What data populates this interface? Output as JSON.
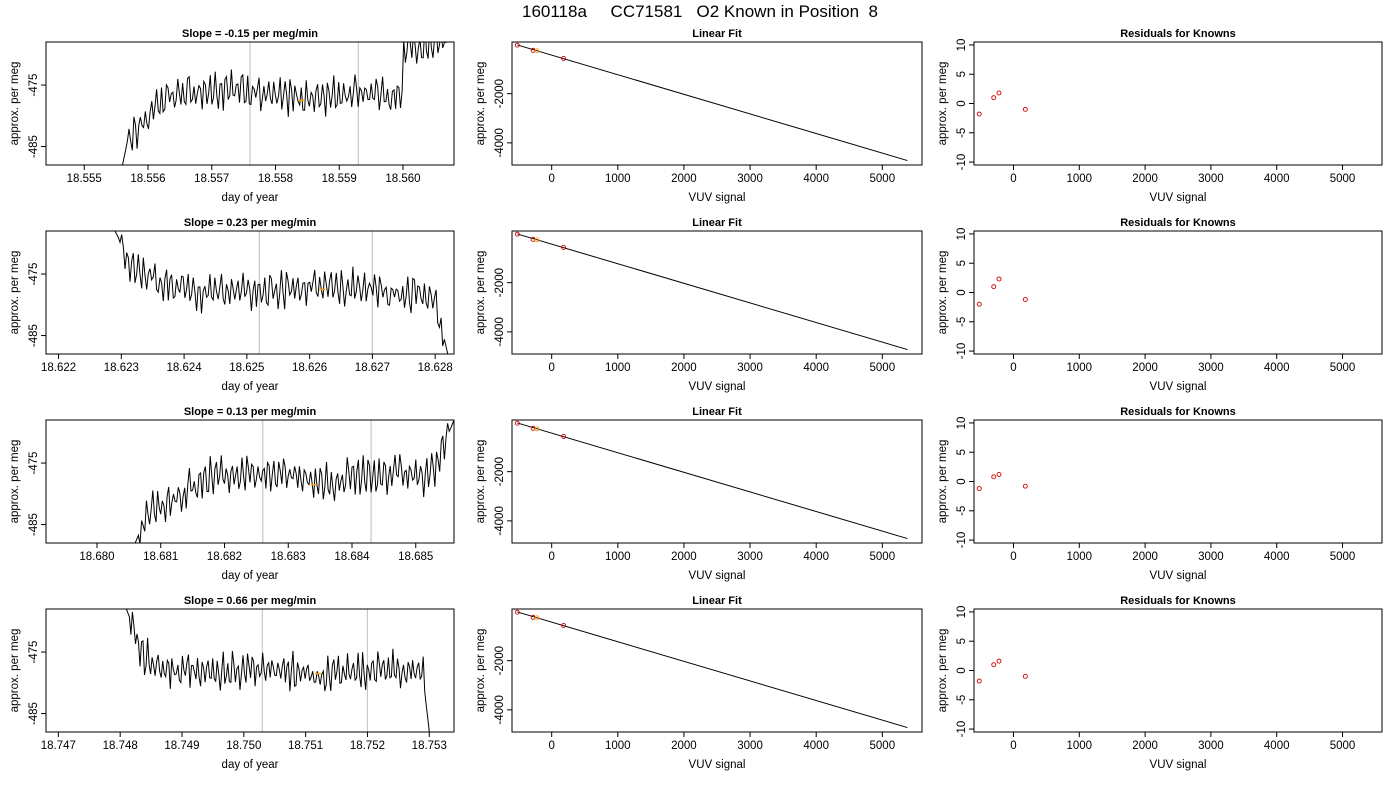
{
  "title": "160118a     CC71581   O2 Known in Position  8",
  "colors": {
    "line": "#000000",
    "grid": "#c8c8c8",
    "orange": "#ffa500",
    "red": "#d00000"
  },
  "chart_data": [
    {
      "type": "line",
      "title": "Slope =  -0.15  per meg/min",
      "xlabel": "day of year",
      "ylabel": "approx. per meg",
      "xlim": [
        18.5544,
        18.5608
      ],
      "ylim": [
        -488,
        -468
      ],
      "xticks": [
        "18.555",
        "18.556",
        "18.557",
        "18.558",
        "18.559",
        "18.560"
      ],
      "yticks": [
        "-485",
        "-475"
      ],
      "vlines": [
        18.5576,
        18.5593
      ],
      "series": [
        {
          "x": [
            18.5556,
            18.5557,
            18.55585,
            18.5563,
            18.5568,
            18.5575,
            18.5581,
            18.5588,
            18.5594,
            18.56,
            18.55605,
            18.5607
          ],
          "y": [
            -488,
            -483,
            -482,
            -477,
            -476,
            -476,
            -477,
            -477,
            -476,
            -477,
            -475,
            -468
          ]
        }
      ],
      "orange_marker": {
        "x": 18.5584,
        "y": -477.5
      }
    },
    {
      "type": "scatter",
      "title": "Linear Fit",
      "xlabel": "VUV signal",
      "ylabel": "approx. per meg",
      "xlim": [
        -600,
        5600
      ],
      "ylim": [
        -4900,
        100
      ],
      "xticks": [
        "0",
        "1000",
        "2000",
        "3000",
        "4000",
        "5000"
      ],
      "yticks": [
        "-2000",
        "-4000"
      ],
      "fit_line": {
        "x": [
          -520,
          5380
        ],
        "y": [
          -20,
          -4720
        ]
      },
      "points": [
        {
          "x": [
            -520,
            -280,
            -220,
            180
          ],
          "y": [
            -30,
            -240,
            -260,
            -570
          ]
        }
      ]
    },
    {
      "type": "scatter",
      "title": "Residuals for Knowns",
      "xlabel": "VUV signal",
      "ylabel": "approx. per meg",
      "xlim": [
        -600,
        5600
      ],
      "ylim": [
        -10.5,
        10.5
      ],
      "xticks": [
        "0",
        "1000",
        "2000",
        "3000",
        "4000",
        "5000"
      ],
      "yticks": [
        "10",
        "5",
        "0",
        "-5",
        "-10"
      ],
      "points": [
        {
          "x": [
            -520,
            -300,
            -220,
            180
          ],
          "y": [
            -1.8,
            1.0,
            1.8,
            -1.0
          ]
        }
      ]
    },
    {
      "type": "line",
      "title": "Slope =  0.23  per meg/min",
      "xlabel": "day of year",
      "ylabel": "approx. per meg",
      "xlim": [
        18.6218,
        18.6283
      ],
      "ylim": [
        -488,
        -468
      ],
      "xticks": [
        "18.622",
        "18.623",
        "18.624",
        "18.625",
        "18.626",
        "18.627",
        "18.628"
      ],
      "yticks": [
        "-485",
        "-475"
      ],
      "vlines": [
        18.6252,
        18.627
      ],
      "series": [
        {
          "x": [
            18.6229,
            18.6232,
            18.6236,
            18.6242,
            18.6248,
            18.6254,
            18.626,
            18.6266,
            18.6272,
            18.6278,
            18.628,
            18.6282
          ],
          "y": [
            -468,
            -474,
            -476,
            -478,
            -478,
            -478,
            -477,
            -477,
            -478,
            -478,
            -479,
            -488
          ]
        }
      ],
      "orange_marker": {
        "x": 18.6262,
        "y": -477.5
      }
    },
    {
      "type": "scatter",
      "title": "Linear Fit",
      "xlabel": "VUV signal",
      "ylabel": "approx. per meg",
      "xlim": [
        -600,
        5600
      ],
      "ylim": [
        -4900,
        100
      ],
      "xticks": [
        "0",
        "1000",
        "2000",
        "3000",
        "4000",
        "5000"
      ],
      "yticks": [
        "-2000",
        "-4000"
      ],
      "fit_line": {
        "x": [
          -520,
          5380
        ],
        "y": [
          -20,
          -4720
        ]
      },
      "points": [
        {
          "x": [
            -520,
            -280,
            -220,
            180
          ],
          "y": [
            -30,
            -240,
            -260,
            -570
          ]
        }
      ]
    },
    {
      "type": "scatter",
      "title": "Residuals for Knowns",
      "xlabel": "VUV signal",
      "ylabel": "approx. per meg",
      "xlim": [
        -600,
        5600
      ],
      "ylim": [
        -10.5,
        10.5
      ],
      "xticks": [
        "0",
        "1000",
        "2000",
        "3000",
        "4000",
        "5000"
      ],
      "yticks": [
        "10",
        "5",
        "0",
        "-5",
        "-10"
      ],
      "points": [
        {
          "x": [
            -520,
            -300,
            -220,
            180
          ],
          "y": [
            -2.0,
            1.0,
            2.3,
            -1.2
          ]
        }
      ]
    },
    {
      "type": "line",
      "title": "Slope =  0.13  per meg/min",
      "xlabel": "day of year",
      "ylabel": "approx. per meg",
      "xlim": [
        18.6792,
        18.6856
      ],
      "ylim": [
        -488,
        -468
      ],
      "xticks": [
        "18.680",
        "18.681",
        "18.682",
        "18.683",
        "18.684",
        "18.685"
      ],
      "yticks": [
        "-485",
        "-475"
      ],
      "vlines": [
        18.6826,
        18.6843
      ],
      "series": [
        {
          "x": [
            18.6806,
            18.6808,
            18.6812,
            18.6818,
            18.6824,
            18.683,
            18.6836,
            18.6842,
            18.6848,
            18.6852,
            18.6853,
            18.6856
          ],
          "y": [
            -488,
            -483,
            -481,
            -477,
            -477,
            -477,
            -478,
            -477,
            -477,
            -477,
            -476,
            -468
          ]
        }
      ],
      "orange_marker": {
        "x": 18.6834,
        "y": -478.5
      }
    },
    {
      "type": "scatter",
      "title": "Linear Fit",
      "xlabel": "VUV signal",
      "ylabel": "approx. per meg",
      "xlim": [
        -600,
        5600
      ],
      "ylim": [
        -4900,
        100
      ],
      "xticks": [
        "0",
        "1000",
        "2000",
        "3000",
        "4000",
        "5000"
      ],
      "yticks": [
        "-2000",
        "-4000"
      ],
      "fit_line": {
        "x": [
          -520,
          5380
        ],
        "y": [
          -20,
          -4720
        ]
      },
      "points": [
        {
          "x": [
            -520,
            -280,
            -220,
            180
          ],
          "y": [
            -30,
            -240,
            -260,
            -570
          ]
        }
      ]
    },
    {
      "type": "scatter",
      "title": "Residuals for Knowns",
      "xlabel": "VUV signal",
      "ylabel": "approx. per meg",
      "xlim": [
        -600,
        5600
      ],
      "ylim": [
        -10.5,
        10.5
      ],
      "xticks": [
        "0",
        "1000",
        "2000",
        "3000",
        "4000",
        "5000"
      ],
      "yticks": [
        "10",
        "5",
        "0",
        "-5",
        "-10"
      ],
      "points": [
        {
          "x": [
            -520,
            -300,
            -220,
            180
          ],
          "y": [
            -1.2,
            0.8,
            1.2,
            -0.8
          ]
        }
      ]
    },
    {
      "type": "line",
      "title": "Slope =  0.66  per meg/min",
      "xlabel": "day of year",
      "ylabel": "approx. per meg",
      "xlim": [
        18.7468,
        18.7534
      ],
      "ylim": [
        -488,
        -468
      ],
      "xticks": [
        "18.747",
        "18.748",
        "18.749",
        "18.750",
        "18.751",
        "18.752",
        "18.753"
      ],
      "yticks": [
        "-485",
        "-475"
      ],
      "vlines": [
        18.7503,
        18.752
      ],
      "series": [
        {
          "x": [
            18.7481,
            18.7484,
            18.7488,
            18.7494,
            18.75,
            18.7506,
            18.7512,
            18.7518,
            18.7524,
            18.7528,
            18.7529,
            18.753
          ],
          "y": [
            -468,
            -476,
            -478,
            -478,
            -478,
            -478,
            -479,
            -478,
            -478,
            -478,
            -479,
            -488
          ]
        }
      ],
      "orange_marker": {
        "x": 18.7512,
        "y": -478.5
      }
    },
    {
      "type": "scatter",
      "title": "Linear Fit",
      "xlabel": "VUV signal",
      "ylabel": "approx. per meg",
      "xlim": [
        -600,
        5600
      ],
      "ylim": [
        -4900,
        100
      ],
      "xticks": [
        "0",
        "1000",
        "2000",
        "3000",
        "4000",
        "5000"
      ],
      "yticks": [
        "-2000",
        "-4000"
      ],
      "fit_line": {
        "x": [
          -520,
          5380
        ],
        "y": [
          -20,
          -4720
        ]
      },
      "points": [
        {
          "x": [
            -520,
            -280,
            -220,
            180
          ],
          "y": [
            -30,
            -240,
            -260,
            -570
          ]
        }
      ]
    },
    {
      "type": "scatter",
      "title": "Residuals for Knowns",
      "xlabel": "VUV signal",
      "ylabel": "approx. per meg",
      "xlim": [
        -600,
        5600
      ],
      "ylim": [
        -10.5,
        10.5
      ],
      "xticks": [
        "0",
        "1000",
        "2000",
        "3000",
        "4000",
        "5000"
      ],
      "yticks": [
        "10",
        "5",
        "0",
        "-5",
        "-10"
      ],
      "points": [
        {
          "x": [
            -520,
            -300,
            -220,
            180
          ],
          "y": [
            -1.8,
            1.0,
            1.6,
            -1.0
          ]
        }
      ]
    }
  ]
}
